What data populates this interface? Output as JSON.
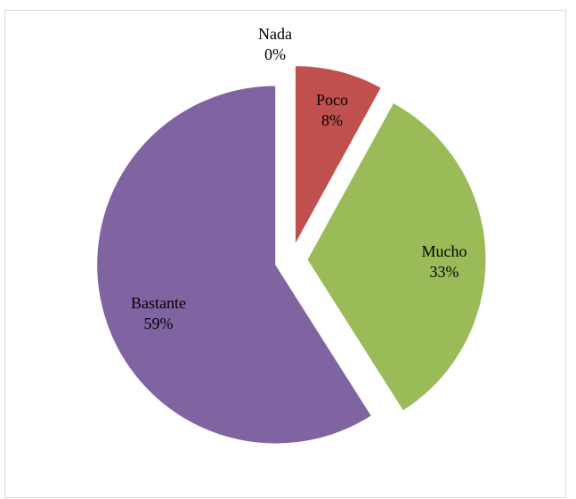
{
  "chart_data": {
    "type": "pie",
    "title": "",
    "slices": [
      {
        "label": "Nada",
        "value": 0,
        "display": "0%",
        "color": "#4f81bd"
      },
      {
        "label": "Poco",
        "value": 8,
        "display": "8%",
        "color": "#c0504d"
      },
      {
        "label": "Mucho",
        "value": 33,
        "display": "33%",
        "color": "#9bbb59"
      },
      {
        "label": "Bastante",
        "value": 59,
        "display": "59%",
        "color": "#8064a2"
      }
    ],
    "start_angle_deg": 0,
    "direction": "clockwise",
    "exploded": true,
    "legend": "none",
    "data_labels": "category and percentage"
  }
}
